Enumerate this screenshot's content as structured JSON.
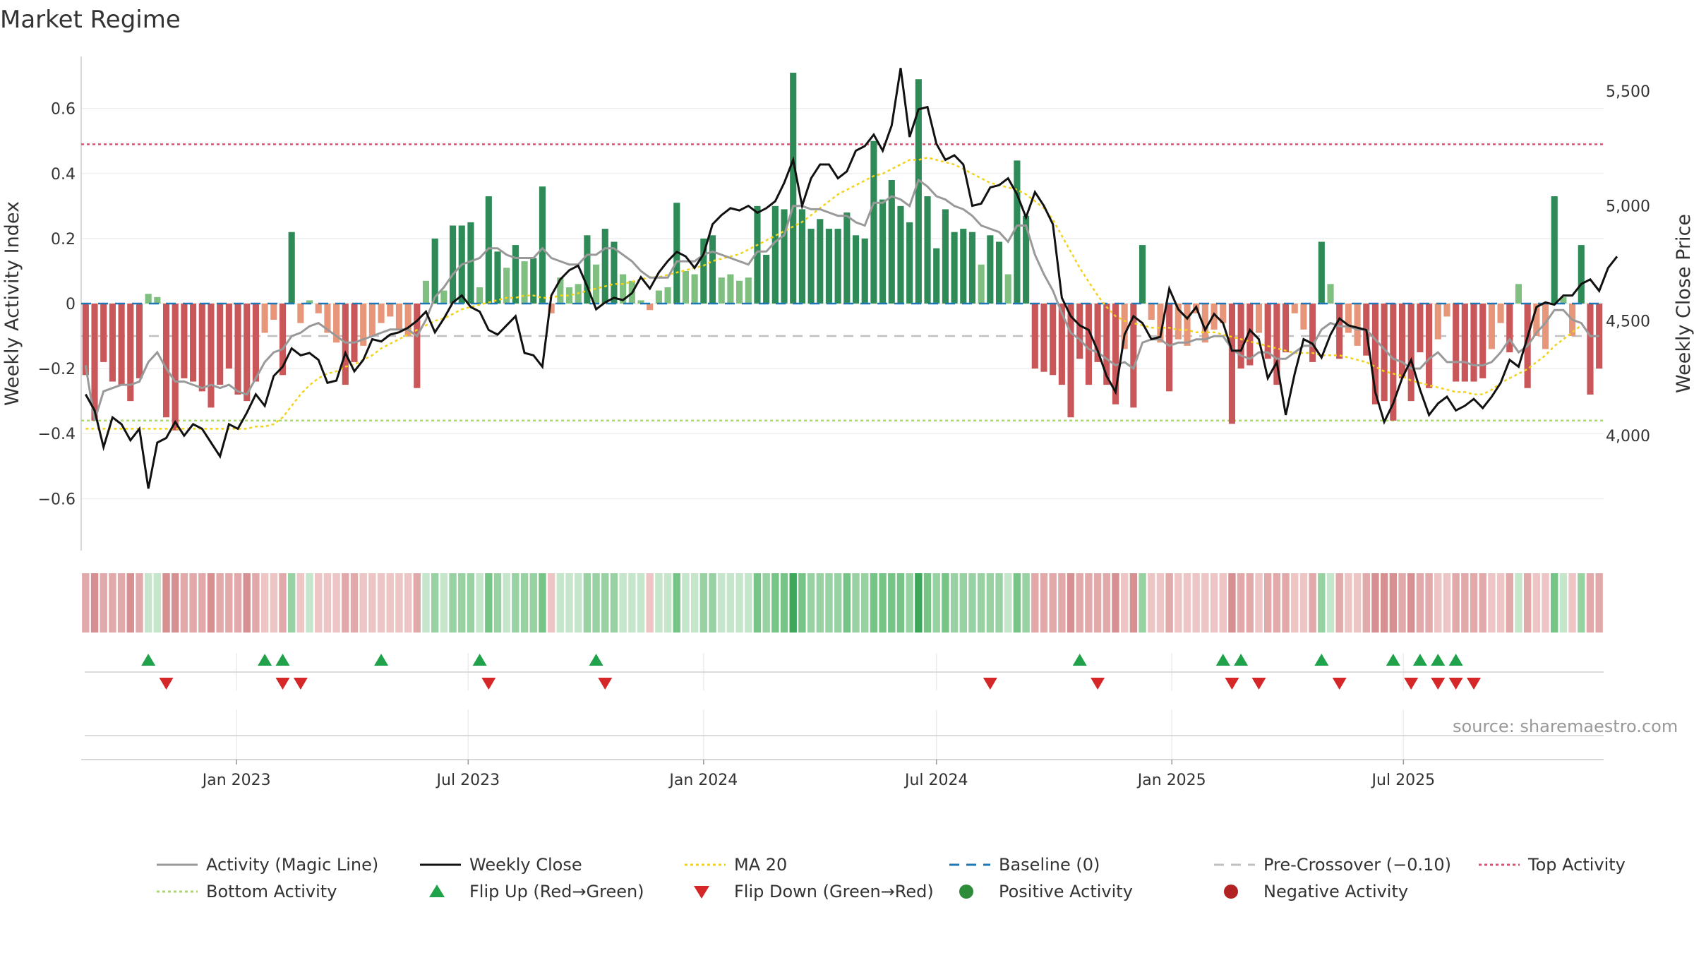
{
  "title": "Market Regime",
  "source_note": "source: sharemaestro.com",
  "colors": {
    "activity_line": "#999999",
    "close_line": "#111111",
    "ma20": "#f2d21b",
    "baseline": "#1f77b4",
    "pre_crossover": "#c0c0c0",
    "top_activity": "#d9536f",
    "bottom_activity": "#a8d86e",
    "flip_up": "#1fa24a",
    "flip_down": "#d62728",
    "positive_activity": "#2e8b3a",
    "negative_activity": "#b22222",
    "bar_strong_pos": "#2e8b57",
    "bar_weak_pos": "#7fbf7f",
    "bar_strong_neg": "#c9575a",
    "bar_weak_neg": "#e8967a"
  },
  "chart_data": {
    "type": "bar",
    "title": "Market Regime",
    "x_type": "date",
    "x_start_date": "2022-09-05",
    "x_interval": "weekly",
    "x_ticks": [
      {
        "date": "2023-01-01",
        "label": "Jan 2023"
      },
      {
        "date": "2023-07-01",
        "label": "Jul 2023"
      },
      {
        "date": "2024-01-01",
        "label": "Jan 2024"
      },
      {
        "date": "2024-07-01",
        "label": "Jul 2024"
      },
      {
        "date": "2025-01-01",
        "label": "Jan 2025"
      },
      {
        "date": "2025-07-01",
        "label": "Jul 2025"
      }
    ],
    "y_left": {
      "label": "Weekly Activity Index",
      "ylim": [
        -0.76,
        0.76
      ],
      "ticks": [
        0.6,
        0.4,
        0.2,
        0,
        -0.2,
        -0.4,
        -0.6
      ],
      "tick_labels": [
        "0.6",
        "0.4",
        "0.2",
        "0",
        "−0.2",
        "−0.4",
        "−0.6"
      ]
    },
    "y_right": {
      "label": "Weekly Close Price",
      "ylim": [
        3500,
        5650
      ],
      "ticks": [
        5500,
        5000,
        4500,
        4000
      ],
      "tick_labels": [
        "5,500",
        "5,000",
        "4,500",
        "4,000"
      ]
    },
    "reference_lines": {
      "baseline": 0,
      "pre_crossover": -0.1,
      "top_activity": 0.49,
      "bottom_activity": -0.36
    },
    "series": [
      {
        "name": "Weekly Activity Index",
        "type": "bar",
        "axis": "left",
        "values": [
          -0.22,
          -0.36,
          -0.18,
          -0.24,
          -0.25,
          -0.3,
          -0.23,
          0.03,
          0.02,
          -0.35,
          -0.39,
          -0.23,
          -0.24,
          -0.27,
          -0.32,
          -0.25,
          -0.2,
          -0.28,
          -0.3,
          -0.24,
          -0.09,
          -0.05,
          -0.22,
          0.22,
          -0.06,
          0.01,
          -0.03,
          -0.09,
          -0.12,
          -0.25,
          -0.18,
          -0.13,
          -0.1,
          -0.06,
          -0.04,
          -0.08,
          -0.1,
          -0.26,
          0.07,
          0.2,
          0.04,
          0.24,
          0.24,
          0.25,
          0.05,
          0.33,
          0.16,
          0.11,
          0.18,
          0.13,
          0.14,
          0.36,
          -0.03,
          0.08,
          0.05,
          0.06,
          0.21,
          0.12,
          0.23,
          0.19,
          0.09,
          0.07,
          0.01,
          -0.02,
          0.04,
          0.05,
          0.31,
          0.1,
          0.09,
          0.2,
          0.21,
          0.08,
          0.09,
          0.07,
          0.08,
          0.3,
          0.15,
          0.3,
          0.29,
          0.71,
          0.29,
          0.23,
          0.26,
          0.23,
          0.23,
          0.28,
          0.21,
          0.2,
          0.5,
          0.32,
          0.38,
          0.3,
          0.25,
          0.69,
          0.33,
          0.17,
          0.29,
          0.22,
          0.23,
          0.22,
          0.12,
          0.21,
          0.19,
          0.09,
          0.44,
          0.27,
          -0.2,
          -0.21,
          -0.22,
          -0.25,
          -0.35,
          -0.17,
          -0.25,
          -0.18,
          -0.25,
          -0.31,
          -0.14,
          -0.32,
          0.18,
          -0.05,
          -0.12,
          -0.27,
          -0.11,
          -0.13,
          -0.03,
          -0.12,
          -0.08,
          -0.06,
          -0.37,
          -0.2,
          -0.19,
          -0.09,
          -0.17,
          -0.25,
          -0.15,
          -0.03,
          -0.08,
          -0.18,
          0.19,
          0.06,
          -0.17,
          -0.09,
          -0.13,
          -0.16,
          -0.31,
          -0.3,
          -0.36,
          -0.23,
          -0.3,
          -0.15,
          -0.26,
          -0.11,
          -0.04,
          -0.24,
          -0.24,
          -0.24,
          -0.23,
          -0.14,
          -0.06,
          -0.15,
          0.06,
          -0.26,
          -0.1,
          -0.14,
          0.33,
          0.02,
          -0.1,
          0.18,
          -0.28,
          -0.2
        ]
      },
      {
        "name": "Activity (Magic Line)",
        "type": "line",
        "axis": "left",
        "values": [
          -0.19,
          -0.36,
          -0.27,
          -0.26,
          -0.25,
          -0.25,
          -0.24,
          -0.18,
          -0.15,
          -0.2,
          -0.24,
          -0.24,
          -0.25,
          -0.26,
          -0.25,
          -0.26,
          -0.25,
          -0.27,
          -0.28,
          -0.23,
          -0.18,
          -0.15,
          -0.14,
          -0.1,
          -0.09,
          -0.07,
          -0.06,
          -0.08,
          -0.1,
          -0.12,
          -0.12,
          -0.11,
          -0.1,
          -0.09,
          -0.08,
          -0.08,
          -0.08,
          -0.1,
          -0.05,
          0.02,
          0.05,
          0.09,
          0.12,
          0.13,
          0.14,
          0.17,
          0.17,
          0.15,
          0.14,
          0.14,
          0.14,
          0.17,
          0.14,
          0.13,
          0.12,
          0.12,
          0.15,
          0.15,
          0.17,
          0.17,
          0.15,
          0.13,
          0.1,
          0.08,
          0.08,
          0.08,
          0.13,
          0.13,
          0.13,
          0.15,
          0.16,
          0.15,
          0.14,
          0.13,
          0.12,
          0.16,
          0.16,
          0.19,
          0.21,
          0.3,
          0.3,
          0.29,
          0.29,
          0.28,
          0.27,
          0.27,
          0.25,
          0.24,
          0.31,
          0.31,
          0.33,
          0.32,
          0.3,
          0.38,
          0.36,
          0.33,
          0.32,
          0.3,
          0.29,
          0.27,
          0.24,
          0.23,
          0.22,
          0.19,
          0.24,
          0.24,
          0.15,
          0.09,
          0.04,
          -0.03,
          -0.09,
          -0.11,
          -0.14,
          -0.15,
          -0.17,
          -0.19,
          -0.18,
          -0.2,
          -0.12,
          -0.11,
          -0.11,
          -0.13,
          -0.12,
          -0.12,
          -0.11,
          -0.11,
          -0.1,
          -0.1,
          -0.14,
          -0.16,
          -0.17,
          -0.15,
          -0.15,
          -0.17,
          -0.17,
          -0.15,
          -0.13,
          -0.13,
          -0.08,
          -0.06,
          -0.07,
          -0.07,
          -0.08,
          -0.08,
          -0.11,
          -0.14,
          -0.17,
          -0.18,
          -0.2,
          -0.2,
          -0.17,
          -0.15,
          -0.18,
          -0.18,
          -0.18,
          -0.19,
          -0.19,
          -0.18,
          -0.15,
          -0.11,
          -0.15,
          -0.13,
          -0.09,
          -0.06,
          -0.02,
          -0.02,
          -0.05,
          -0.06,
          -0.1,
          -0.1
        ]
      },
      {
        "name": "Weekly Close",
        "type": "line",
        "axis": "right",
        "values": [
          4180,
          4110,
          3950,
          4080,
          4050,
          3980,
          4030,
          3770,
          3970,
          3990,
          4060,
          4000,
          4050,
          4030,
          3970,
          3910,
          4050,
          4030,
          4100,
          4180,
          4130,
          4260,
          4300,
          4380,
          4350,
          4360,
          4330,
          4230,
          4240,
          4360,
          4280,
          4330,
          4420,
          4410,
          4440,
          4450,
          4470,
          4500,
          4540,
          4450,
          4510,
          4580,
          4610,
          4560,
          4540,
          4460,
          4440,
          4480,
          4520,
          4360,
          4350,
          4300,
          4610,
          4680,
          4720,
          4740,
          4650,
          4550,
          4580,
          4600,
          4590,
          4620,
          4690,
          4640,
          4710,
          4760,
          4800,
          4780,
          4730,
          4790,
          4920,
          4960,
          4990,
          4980,
          5000,
          4970,
          4990,
          5020,
          5100,
          5200,
          5000,
          5120,
          5180,
          5180,
          5120,
          5150,
          5240,
          5260,
          5310,
          5240,
          5350,
          5600,
          5300,
          5420,
          5430,
          5270,
          5200,
          5220,
          5180,
          5000,
          5010,
          5080,
          5090,
          5120,
          5050,
          4950,
          5060,
          5000,
          4920,
          4600,
          4520,
          4480,
          4460,
          4370,
          4260,
          4190,
          4440,
          4520,
          4490,
          4420,
          4430,
          4640,
          4550,
          4510,
          4560,
          4460,
          4530,
          4490,
          4370,
          4370,
          4460,
          4420,
          4250,
          4320,
          4090,
          4270,
          4420,
          4400,
          4340,
          4440,
          4510,
          4480,
          4470,
          4460,
          4190,
          4060,
          4140,
          4250,
          4330,
          4200,
          4090,
          4140,
          4170,
          4110,
          4130,
          4160,
          4120,
          4170,
          4230,
          4330,
          4300,
          4430,
          4560,
          4580,
          4570,
          4610,
          4610,
          4660,
          4680,
          4630,
          4730,
          4780
        ]
      },
      {
        "name": "MA 20",
        "type": "line",
        "axis": "right",
        "values": [
          4030,
          4030,
          4030,
          4030,
          4030,
          4030,
          4030,
          4030,
          4030,
          4030,
          4030,
          4030,
          4030,
          4030,
          4030,
          4030,
          4030,
          4030,
          4030,
          4040,
          4040,
          4050,
          4080,
          4130,
          4180,
          4220,
          4250,
          4270,
          4280,
          4300,
          4310,
          4330,
          4350,
          4380,
          4400,
          4420,
          4440,
          4460,
          4480,
          4500,
          4510,
          4530,
          4550,
          4560,
          4570,
          4580,
          4590,
          4600,
          4600,
          4610,
          4610,
          4600,
          4600,
          4610,
          4610,
          4620,
          4630,
          4640,
          4650,
          4660,
          4660,
          4670,
          4680,
          4690,
          4690,
          4700,
          4710,
          4720,
          4730,
          4740,
          4760,
          4770,
          4780,
          4790,
          4810,
          4830,
          4850,
          4870,
          4890,
          4910,
          4930,
          4960,
          4990,
          5020,
          5050,
          5070,
          5090,
          5110,
          5130,
          5140,
          5160,
          5180,
          5200,
          5200,
          5210,
          5200,
          5190,
          5180,
          5160,
          5140,
          5120,
          5100,
          5090,
          5080,
          5070,
          5050,
          5020,
          4990,
          4940,
          4870,
          4800,
          4730,
          4670,
          4610,
          4560,
          4520,
          4500,
          4490,
          4480,
          4470,
          4470,
          4470,
          4460,
          4460,
          4450,
          4450,
          4450,
          4440,
          4430,
          4420,
          4410,
          4400,
          4390,
          4380,
          4370,
          4360,
          4360,
          4360,
          4350,
          4350,
          4350,
          4340,
          4330,
          4320,
          4300,
          4280,
          4270,
          4260,
          4240,
          4230,
          4220,
          4210,
          4200,
          4190,
          4190,
          4180,
          4180,
          4200,
          4230,
          4250,
          4270,
          4290,
          4320,
          4350,
          4390,
          4420,
          4450,
          4480
        ]
      }
    ],
    "markers": {
      "flip_up_weeks": [
        7,
        20,
        22,
        33,
        44,
        57,
        111,
        127,
        129,
        138,
        146,
        149,
        151,
        153
      ],
      "flip_down_weeks": [
        9,
        22,
        24,
        45,
        58,
        101,
        113,
        128,
        131,
        140,
        148,
        151,
        153,
        155
      ]
    },
    "legend": {
      "position": "bottom",
      "entries": [
        {
          "label": "Activity (Magic Line)",
          "symbol": "line-solid",
          "color": "#999999"
        },
        {
          "label": "Weekly Close",
          "symbol": "line-solid",
          "color": "#111111"
        },
        {
          "label": "MA 20",
          "symbol": "line-dotted",
          "color": "#f2d21b"
        },
        {
          "label": "Baseline (0)",
          "symbol": "line-dashed",
          "color": "#1f77b4"
        },
        {
          "label": "Pre-Crossover (−0.10)",
          "symbol": "line-dashed",
          "color": "#c0c0c0"
        },
        {
          "label": "Top Activity",
          "symbol": "line-dotted",
          "color": "#d9536f"
        },
        {
          "label": "Bottom Activity",
          "symbol": "line-dotted",
          "color": "#a8d86e"
        },
        {
          "label": "Flip Up (Red→Green)",
          "symbol": "triangle-up",
          "color": "#1fa24a"
        },
        {
          "label": "Flip Down (Green→Red)",
          "symbol": "triangle-down",
          "color": "#d62728"
        },
        {
          "label": "Positive Activity",
          "symbol": "circle",
          "color": "#2e8b3a"
        },
        {
          "label": "Negative Activity",
          "symbol": "circle",
          "color": "#b22222"
        }
      ]
    }
  }
}
